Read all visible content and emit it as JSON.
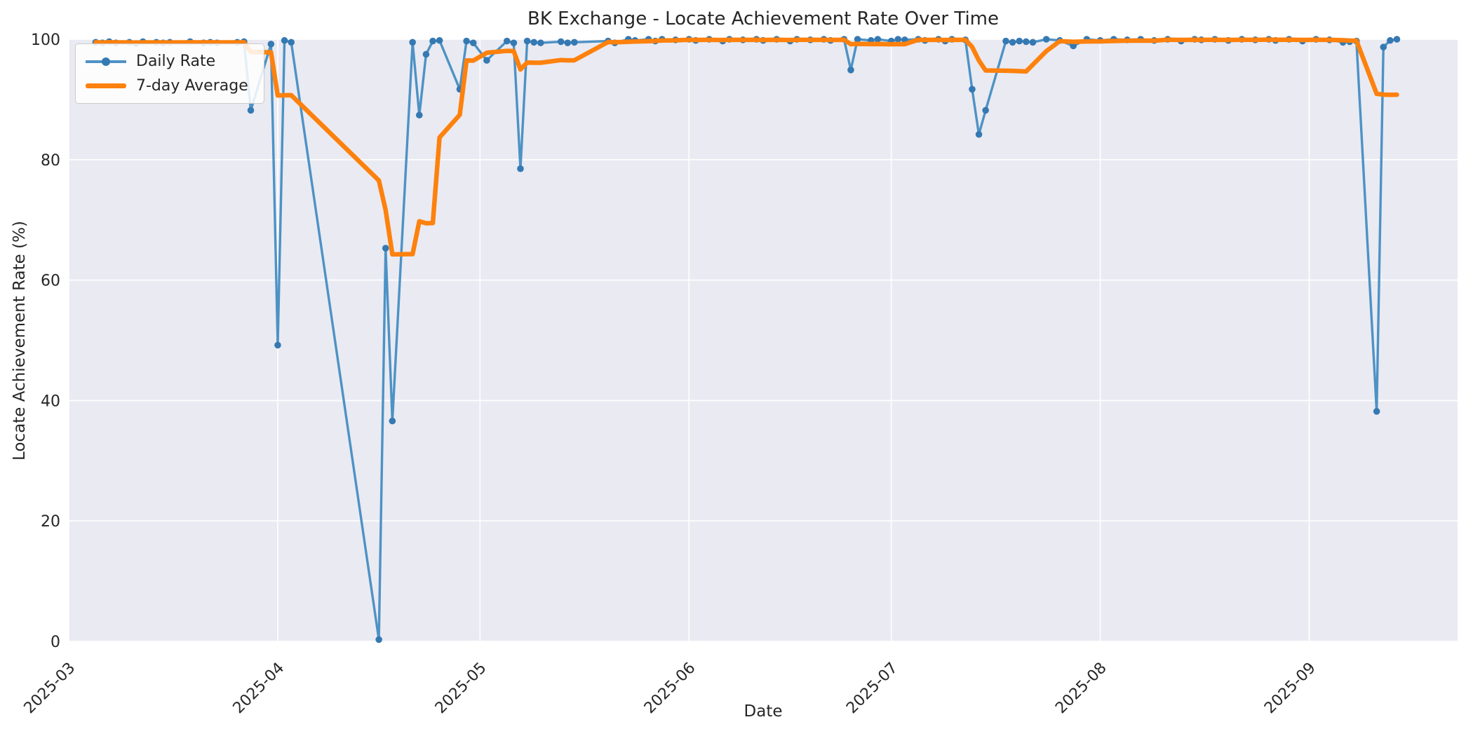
{
  "title": "BK Exchange - Locate Achievement Rate Over Time",
  "colors": {
    "figure_background": "#ffffff",
    "axes_background": "#eaeaf2",
    "grid": "#ffffff",
    "text": "#262626",
    "daily_line": "#4d92c5",
    "daily_marker": "#3579b2",
    "average_line": "#fd810d"
  },
  "legend": {
    "position": "upper-left",
    "items": [
      "Daily Rate",
      "7-day Average"
    ]
  },
  "chart_data": {
    "type": "line",
    "title": "BK Exchange - Locate Achievement Rate Over Time",
    "xlabel": "Date",
    "ylabel": "Locate Achievement Rate (%)",
    "ylim": [
      0,
      100
    ],
    "y_ticks": [
      0,
      20,
      40,
      60,
      80,
      100
    ],
    "x_ticks": [
      "2025-03",
      "2025-04",
      "2025-05",
      "2025-06",
      "2025-07",
      "2025-08",
      "2025-09"
    ],
    "x_axis_start": "2025-03-01",
    "x_axis_end": "2025-09-23",
    "grid": true,
    "legend_position": "upper left",
    "series": [
      {
        "name": "Daily Rate",
        "style": "line+markers",
        "color": "#4d92c5",
        "marker_color": "#3579b2",
        "points": [
          [
            "2025-03-05",
            99.5
          ],
          [
            "2025-03-06",
            99.4
          ],
          [
            "2025-03-07",
            99.6
          ],
          [
            "2025-03-08",
            99.4
          ],
          [
            "2025-03-10",
            99.5
          ],
          [
            "2025-03-11",
            99.3
          ],
          [
            "2025-03-12",
            99.6
          ],
          [
            "2025-03-14",
            99.5
          ],
          [
            "2025-03-15",
            99.4
          ],
          [
            "2025-03-16",
            99.5
          ],
          [
            "2025-03-19",
            99.6
          ],
          [
            "2025-03-21",
            99.4
          ],
          [
            "2025-03-22",
            99.5
          ],
          [
            "2025-03-23",
            99.4
          ],
          [
            "2025-03-26",
            99.5
          ],
          [
            "2025-03-27",
            99.6
          ],
          [
            "2025-03-28",
            88.2
          ],
          [
            "2025-03-31",
            99.2
          ],
          [
            "2025-04-01",
            49.2
          ],
          [
            "2025-04-02",
            99.8
          ],
          [
            "2025-04-03",
            99.5
          ],
          [
            "2025-04-16",
            0.3
          ],
          [
            "2025-04-17",
            65.3
          ],
          [
            "2025-04-18",
            36.6
          ],
          [
            "2025-04-21",
            99.5
          ],
          [
            "2025-04-22",
            87.4
          ],
          [
            "2025-04-23",
            97.5
          ],
          [
            "2025-04-24",
            99.7
          ],
          [
            "2025-04-25",
            99.8
          ],
          [
            "2025-04-28",
            91.7
          ],
          [
            "2025-04-29",
            99.7
          ],
          [
            "2025-04-30",
            99.4
          ],
          [
            "2025-05-02",
            96.5
          ],
          [
            "2025-05-05",
            99.7
          ],
          [
            "2025-05-06",
            99.4
          ],
          [
            "2025-05-07",
            78.5
          ],
          [
            "2025-05-08",
            99.7
          ],
          [
            "2025-05-09",
            99.5
          ],
          [
            "2025-05-10",
            99.4
          ],
          [
            "2025-05-13",
            99.6
          ],
          [
            "2025-05-14",
            99.4
          ],
          [
            "2025-05-15",
            99.5
          ],
          [
            "2025-05-20",
            99.7
          ],
          [
            "2025-05-21",
            99.4
          ],
          [
            "2025-05-23",
            100
          ],
          [
            "2025-05-24",
            99.8
          ],
          [
            "2025-05-26",
            100
          ],
          [
            "2025-05-27",
            99.7
          ],
          [
            "2025-05-28",
            100
          ],
          [
            "2025-05-30",
            99.9
          ],
          [
            "2025-06-01",
            100
          ],
          [
            "2025-06-02",
            99.8
          ],
          [
            "2025-06-04",
            100
          ],
          [
            "2025-06-06",
            99.7
          ],
          [
            "2025-06-07",
            100
          ],
          [
            "2025-06-09",
            99.9
          ],
          [
            "2025-06-11",
            100
          ],
          [
            "2025-06-12",
            99.8
          ],
          [
            "2025-06-14",
            100
          ],
          [
            "2025-06-16",
            99.7
          ],
          [
            "2025-06-17",
            100
          ],
          [
            "2025-06-19",
            99.9
          ],
          [
            "2025-06-21",
            100
          ],
          [
            "2025-06-22",
            99.8
          ],
          [
            "2025-06-24",
            100
          ],
          [
            "2025-06-25",
            94.9
          ],
          [
            "2025-06-26",
            100
          ],
          [
            "2025-06-28",
            99.8
          ],
          [
            "2025-06-29",
            100
          ],
          [
            "2025-07-01",
            99.7
          ],
          [
            "2025-07-02",
            100
          ],
          [
            "2025-07-03",
            99.9
          ],
          [
            "2025-07-05",
            100
          ],
          [
            "2025-07-06",
            99.8
          ],
          [
            "2025-07-08",
            100
          ],
          [
            "2025-07-09",
            99.7
          ],
          [
            "2025-07-10",
            100
          ],
          [
            "2025-07-12",
            99.9
          ],
          [
            "2025-07-13",
            91.7
          ],
          [
            "2025-07-14",
            84.2
          ],
          [
            "2025-07-15",
            88.2
          ],
          [
            "2025-07-18",
            99.7
          ],
          [
            "2025-07-19",
            99.5
          ],
          [
            "2025-07-20",
            99.7
          ],
          [
            "2025-07-21",
            99.6
          ],
          [
            "2025-07-22",
            99.5
          ],
          [
            "2025-07-24",
            100
          ],
          [
            "2025-07-26",
            99.8
          ],
          [
            "2025-07-28",
            98.9
          ],
          [
            "2025-07-30",
            100
          ],
          [
            "2025-08-01",
            99.8
          ],
          [
            "2025-08-03",
            100
          ],
          [
            "2025-08-05",
            99.9
          ],
          [
            "2025-08-07",
            100
          ],
          [
            "2025-08-09",
            99.8
          ],
          [
            "2025-08-11",
            100
          ],
          [
            "2025-08-13",
            99.7
          ],
          [
            "2025-08-15",
            100
          ],
          [
            "2025-08-16",
            99.9
          ],
          [
            "2025-08-18",
            100
          ],
          [
            "2025-08-20",
            99.8
          ],
          [
            "2025-08-22",
            100
          ],
          [
            "2025-08-24",
            99.9
          ],
          [
            "2025-08-26",
            100
          ],
          [
            "2025-08-27",
            99.8
          ],
          [
            "2025-08-29",
            100
          ],
          [
            "2025-08-31",
            99.7
          ],
          [
            "2025-09-02",
            100
          ],
          [
            "2025-09-04",
            99.9
          ],
          [
            "2025-09-06",
            99.5
          ],
          [
            "2025-09-07",
            99.6
          ],
          [
            "2025-09-08",
            99.7
          ],
          [
            "2025-09-11",
            38.2
          ],
          [
            "2025-09-12",
            98.7
          ],
          [
            "2025-09-13",
            99.8
          ],
          [
            "2025-09-14",
            100
          ]
        ]
      },
      {
        "name": "7-day Average",
        "style": "line",
        "color": "#fd810d",
        "derived": "rolling_mean_window7_min_periods1_of_Daily_Rate"
      }
    ]
  }
}
